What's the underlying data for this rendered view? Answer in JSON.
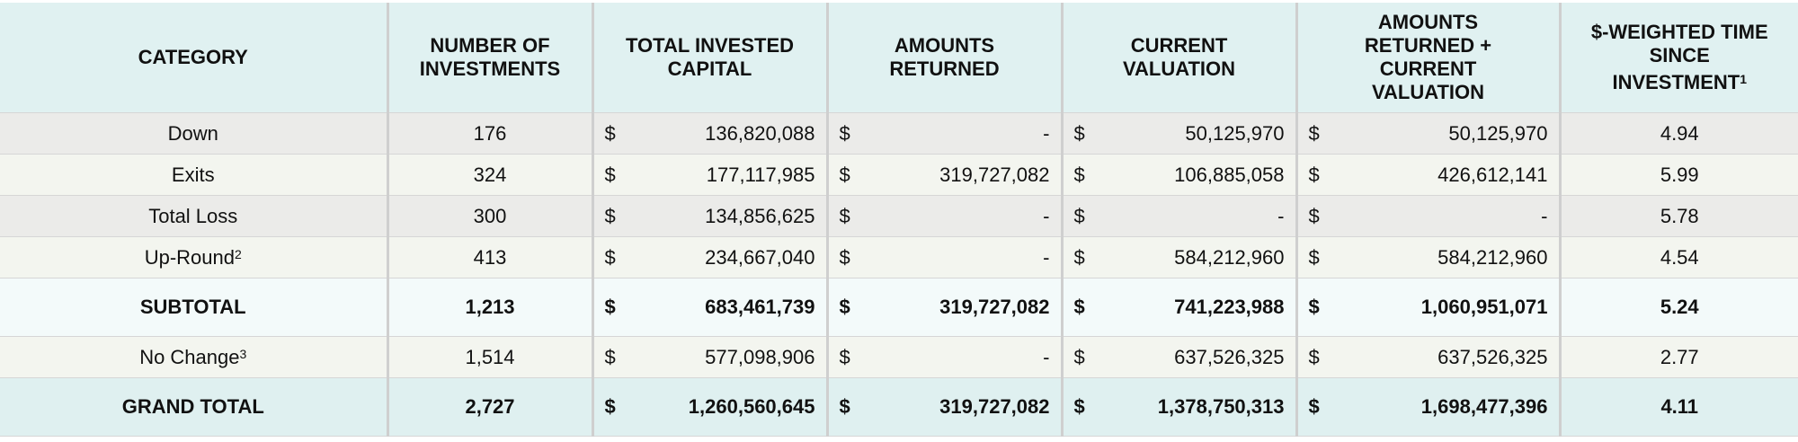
{
  "table": {
    "currency": "$",
    "header": [
      {
        "text": "CATEGORY"
      },
      {
        "text": "NUMBER OF INVESTMENTS"
      },
      {
        "text": "TOTAL INVESTED CAPITAL"
      },
      {
        "text": "AMOUNTS RETURNED"
      },
      {
        "text": "CURRENT VALUATION"
      },
      {
        "text": "AMOUNTS RETURNED + CURRENT VALUATION"
      },
      {
        "text": "$-WEIGHTED TIME SINCE INVESTMENT",
        "sup": "1"
      }
    ],
    "rows": [
      {
        "category": "Down",
        "count": "176",
        "invested": "136,820,088",
        "returned": "-",
        "valuation": "50,125,970",
        "total": "50,125,970",
        "years": "4.94"
      },
      {
        "category": "Exits",
        "count": "324",
        "invested": "177,117,985",
        "returned": "319,727,082",
        "valuation": "106,885,058",
        "total": "426,612,141",
        "years": "5.99"
      },
      {
        "category": "Total Loss",
        "count": "300",
        "invested": "134,856,625",
        "returned": "-",
        "valuation": "-",
        "total": "-",
        "years": "5.78"
      },
      {
        "category": "Up-Round",
        "sup": "2",
        "count": "413",
        "invested": "234,667,040",
        "returned": "-",
        "valuation": "584,212,960",
        "total": "584,212,960",
        "years": "4.54"
      },
      {
        "category": "SUBTOTAL",
        "count": "1,213",
        "invested": "683,461,739",
        "returned": "319,727,082",
        "valuation": "741,223,988",
        "total": "1,060,951,071",
        "years": "5.24"
      },
      {
        "category": "No Change",
        "sup": "3",
        "count": "1,514",
        "invested": "577,098,906",
        "returned": "-",
        "valuation": "637,526,325",
        "total": "637,526,325",
        "years": "2.77"
      },
      {
        "category": "GRAND TOTAL",
        "count": "2,727",
        "invested": "1,260,560,645",
        "returned": "319,727,082",
        "valuation": "1,378,750,313",
        "total": "1,698,477,396",
        "years": "4.11"
      }
    ]
  }
}
